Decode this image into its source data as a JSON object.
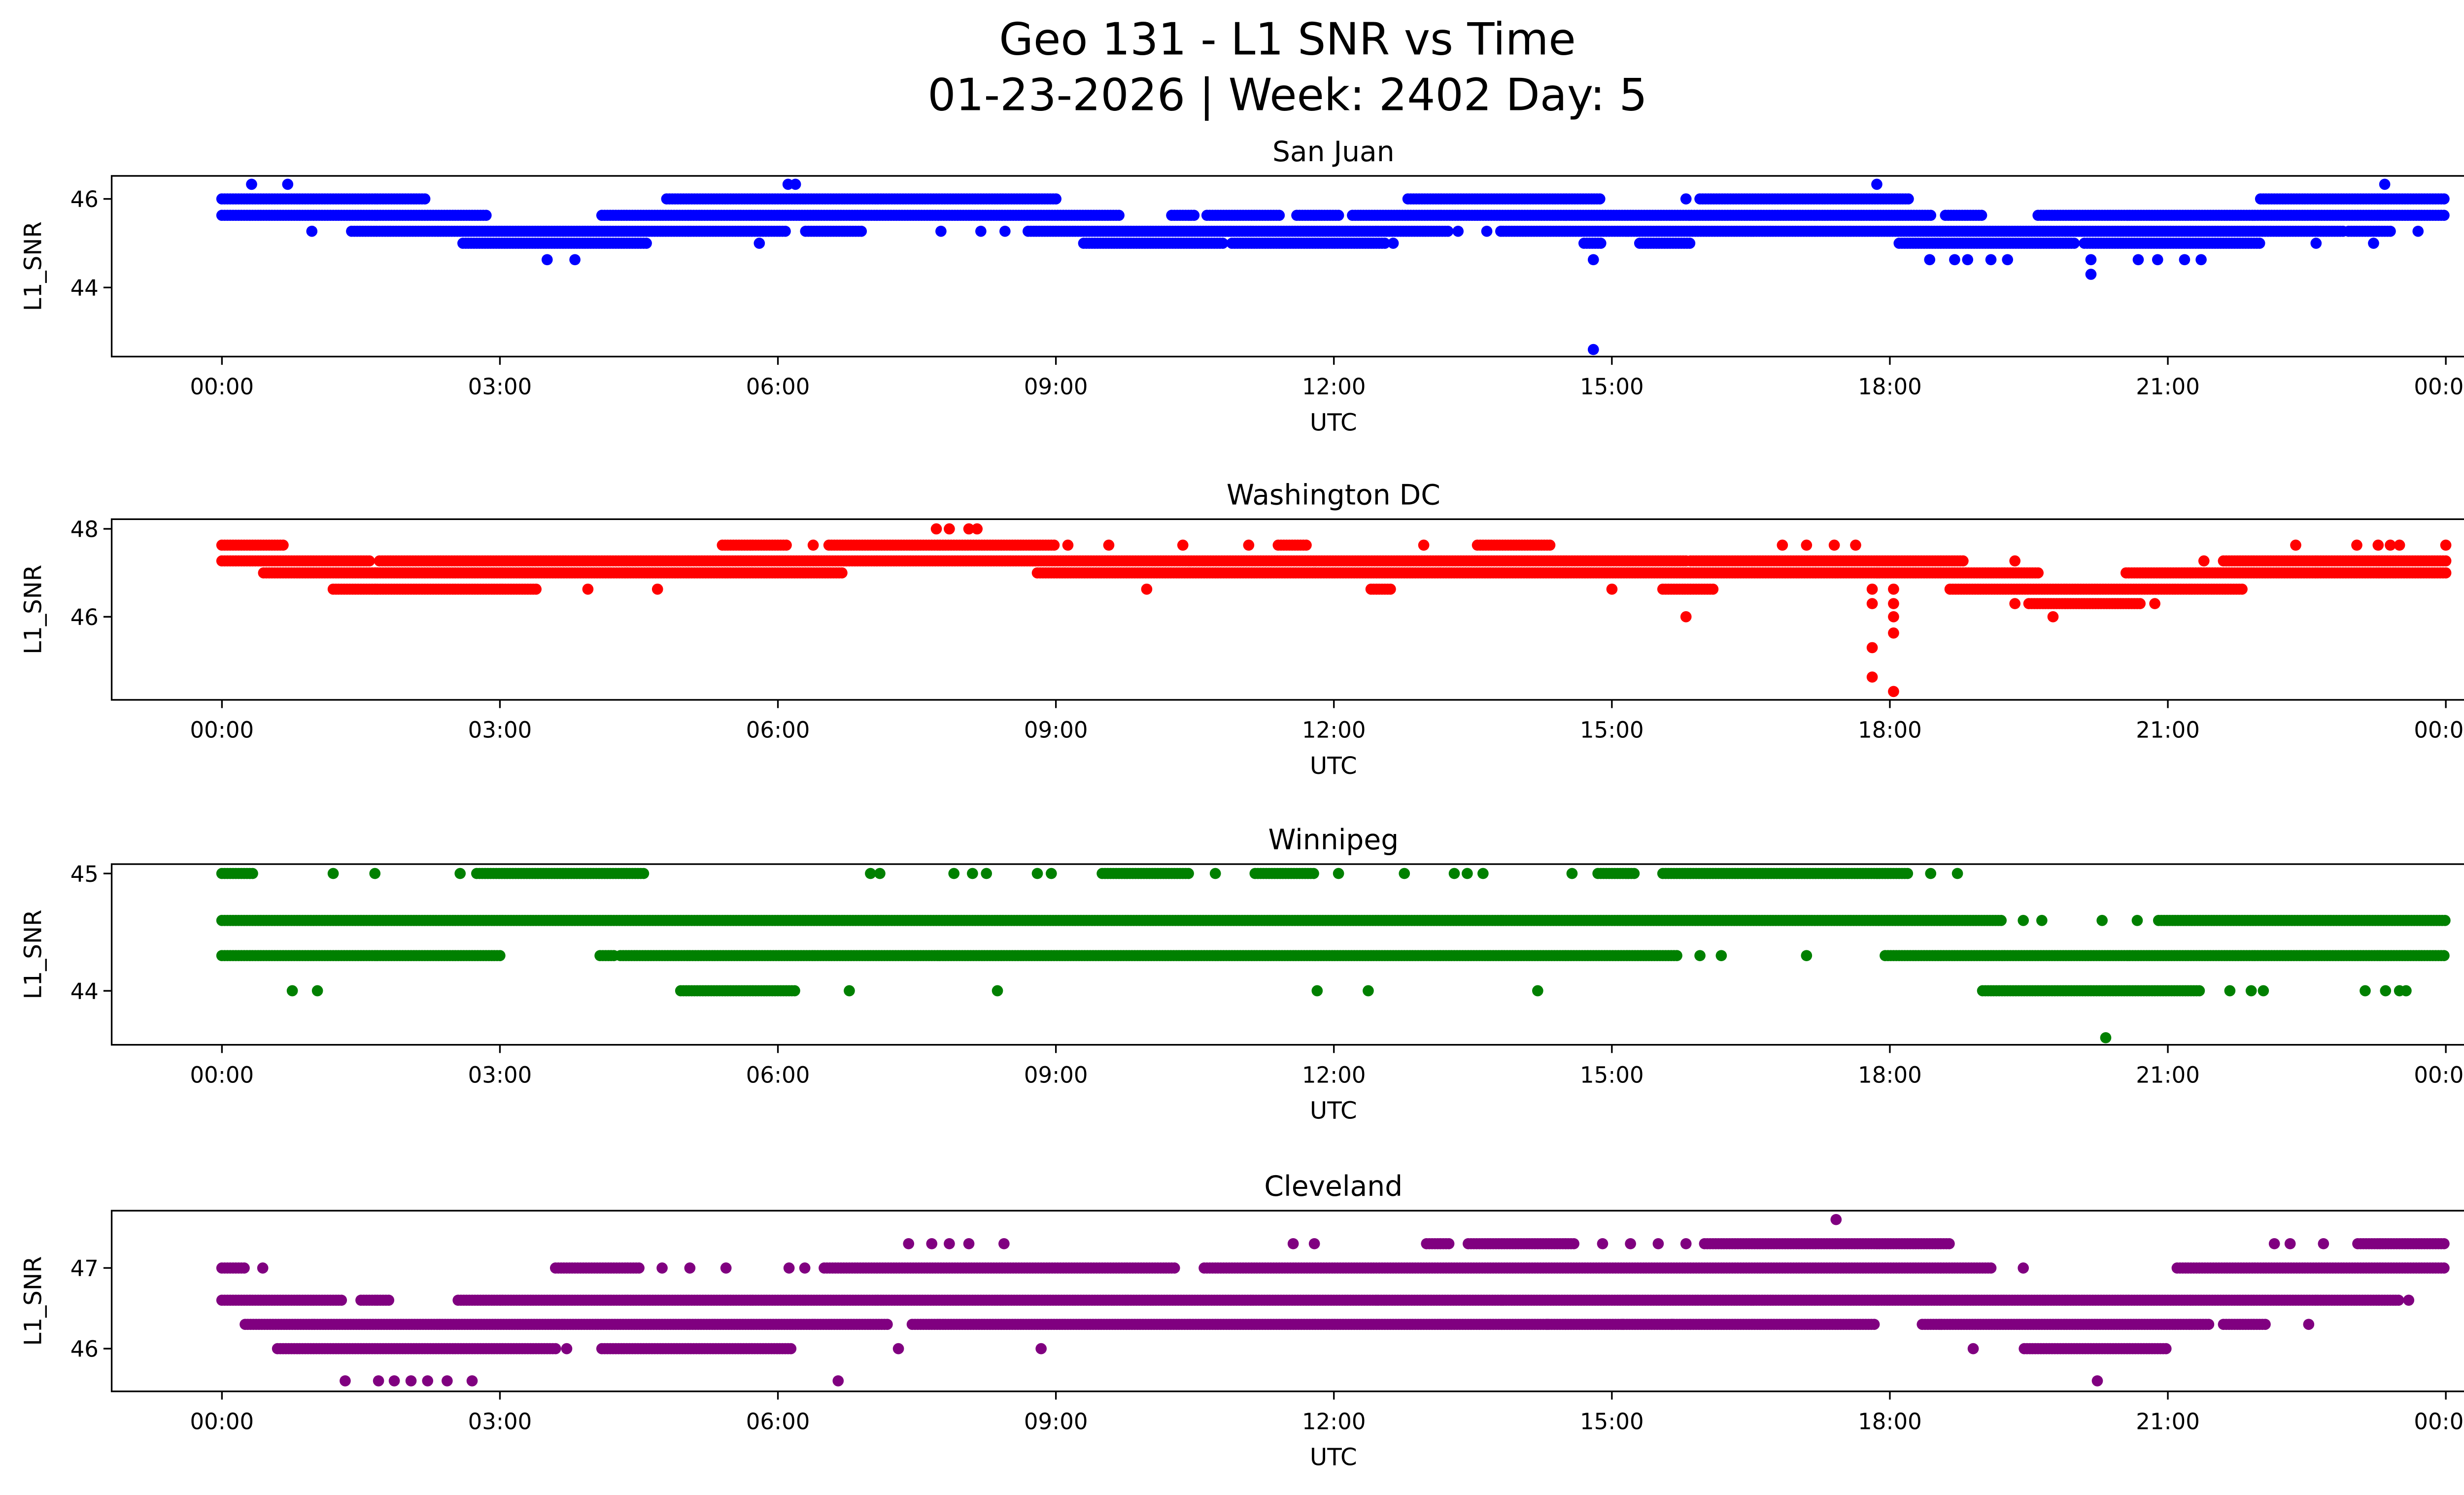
{
  "chart_data": {
    "type": "scatter",
    "title": "Geo 131 - L1 SNR vs Time",
    "subtitle": "01-23-2026 | Week: 2402 Day: 5",
    "xlabel": "UTC",
    "ylabel": "L1_SNR",
    "x_units": "hours since 00:00 UTC",
    "xlim": [
      -1.19,
      25.18
    ],
    "xticks": [
      0,
      3,
      6,
      9,
      12,
      15,
      18,
      21,
      24
    ],
    "xtick_labels": [
      "00:00",
      "03:00",
      "06:00",
      "09:00",
      "12:00",
      "15:00",
      "18:00",
      "21:00",
      "00:00"
    ],
    "panels": [
      {
        "title": "San Juan",
        "color": "#0000ff",
        "ylim": [
          42.44,
          46.52
        ],
        "yticks": [
          44,
          46
        ],
        "levels": [
          {
            "y": 46.33,
            "ranges": [],
            "points": [
              0.32,
              0.71,
              6.11,
              6.19,
              17.86,
              23.34
            ]
          },
          {
            "y": 46.0,
            "ranges": [
              [
                0,
                2.2
              ],
              [
                4.8,
                9.0
              ],
              [
                12.8,
                14.87
              ],
              [
                15.95,
                18.2
              ],
              [
                22.0,
                24.0
              ]
            ],
            "points": [
              15.8
            ]
          },
          {
            "y": 45.63,
            "ranges": [
              [
                0,
                2.87
              ],
              [
                4.1,
                9.7
              ],
              [
                10.25,
                10.5
              ],
              [
                10.63,
                11.43
              ],
              [
                11.6,
                12.05
              ],
              [
                12.2,
                18.45
              ],
              [
                18.6,
                19.0
              ],
              [
                19.6,
                24.0
              ]
            ],
            "points": []
          },
          {
            "y": 45.27,
            "ranges": [
              [
                1.4,
                6.1
              ],
              [
                6.3,
                6.9
              ],
              [
                8.7,
                13.25
              ],
              [
                13.8,
                22.9
              ],
              [
                22.95,
                23.4
              ]
            ],
            "points": [
              0.97,
              7.76,
              8.19,
              8.45,
              13.34,
              13.65,
              23.7
            ]
          },
          {
            "y": 45.0,
            "ranges": [
              [
                2.6,
                4.6
              ],
              [
                9.3,
                10.8
              ],
              [
                10.9,
                12.55
              ],
              [
                14.7,
                14.9
              ],
              [
                15.3,
                15.85
              ],
              [
                18.1,
                20.0
              ],
              [
                20.1,
                22.0
              ]
            ],
            "points": [
              5.8,
              12.64,
              22.6,
              23.22
            ]
          },
          {
            "y": 44.63,
            "ranges": [],
            "points": [
              3.51,
              3.81,
              14.8,
              18.43,
              18.7,
              18.84,
              19.09,
              19.27,
              20.17,
              20.68,
              20.89,
              21.18,
              21.36
            ]
          },
          {
            "y": 44.3,
            "ranges": [],
            "points": [
              20.17
            ]
          },
          {
            "y": 42.6,
            "ranges": [],
            "points": [
              14.8
            ]
          }
        ]
      },
      {
        "title": "Washington DC",
        "color": "#ff0000",
        "ylim": [
          44.11,
          48.22
        ],
        "yticks": [
          46,
          48
        ],
        "levels": [
          {
            "y": 48.0,
            "ranges": [],
            "points": [
              7.71,
              7.85,
              8.06,
              8.15
            ]
          },
          {
            "y": 47.63,
            "ranges": [
              [
                0,
                0.67
              ],
              [
                5.4,
                6.1
              ],
              [
                6.55,
                9.0
              ],
              [
                11.4,
                11.7
              ],
              [
                13.55,
                14.35
              ]
            ],
            "points": [
              6.38,
              9.13,
              9.57,
              10.37,
              11.08,
              12.97,
              16.84,
              17.1,
              17.4,
              17.63,
              22.38,
              23.04,
              23.27,
              23.4,
              23.5,
              24.0
            ]
          },
          {
            "y": 47.27,
            "ranges": [
              [
                0,
                1.6
              ],
              [
                1.7,
                15.8
              ],
              [
                15.85,
                18.8
              ],
              [
                21.6,
                24.0
              ]
            ],
            "points": [
              19.35,
              21.39
            ]
          },
          {
            "y": 47.0,
            "ranges": [
              [
                0.45,
                6.7
              ],
              [
                8.8,
                19.6
              ],
              [
                20.55,
                24.0
              ]
            ],
            "points": []
          },
          {
            "y": 46.63,
            "ranges": [
              [
                1.2,
                3.4
              ],
              [
                12.4,
                12.62
              ],
              [
                15.55,
                16.1
              ],
              [
                18.65,
                21.8
              ]
            ],
            "points": [
              3.95,
              4.7,
              9.98,
              15.0,
              17.81,
              18.04
            ]
          },
          {
            "y": 46.3,
            "ranges": [
              [
                19.5,
                20.7
              ]
            ],
            "points": [
              17.81,
              18.04,
              19.35,
              20.86
            ]
          },
          {
            "y": 46.0,
            "ranges": [],
            "points": [
              15.8,
              18.04,
              19.76
            ]
          },
          {
            "y": 45.63,
            "ranges": [],
            "points": [
              18.04
            ]
          },
          {
            "y": 45.3,
            "ranges": [],
            "points": [
              17.81
            ]
          },
          {
            "y": 44.63,
            "ranges": [],
            "points": [
              17.81
            ]
          },
          {
            "y": 44.3,
            "ranges": [],
            "points": [
              18.04
            ]
          }
        ]
      },
      {
        "title": "Winnipeg",
        "color": "#008000",
        "ylim": [
          43.54,
          45.08
        ],
        "yticks": [
          44,
          45
        ],
        "levels": [
          {
            "y": 45.0,
            "ranges": [
              [
                0,
                0.35
              ],
              [
                2.75,
                4.55
              ],
              [
                9.5,
                10.45
              ],
              [
                11.15,
                11.8
              ],
              [
                14.85,
                15.25
              ],
              [
                15.55,
                18.2
              ]
            ],
            "points": [
              1.2,
              1.65,
              2.57,
              7.0,
              7.1,
              7.9,
              8.1,
              8.25,
              8.8,
              8.95,
              10.72,
              12.05,
              12.76,
              13.3,
              13.44,
              13.61,
              14.57,
              18.44,
              18.73
            ]
          },
          {
            "y": 44.6,
            "ranges": [
              [
                0,
                19.2
              ],
              [
                20.9,
                24.0
              ]
            ],
            "points": [
              19.44,
              19.64,
              20.29,
              20.67
            ]
          },
          {
            "y": 44.3,
            "ranges": [
              [
                0,
                3.0
              ],
              [
                4.08,
                4.25
              ],
              [
                4.3,
                15.7
              ],
              [
                17.95,
                24.0
              ]
            ],
            "points": [
              15.95,
              16.18,
              17.1
            ]
          },
          {
            "y": 44.0,
            "ranges": [
              [
                4.95,
                6.2
              ],
              [
                19.0,
                21.35
              ]
            ],
            "points": [
              0.76,
              1.03,
              6.77,
              8.37,
              11.82,
              12.37,
              14.2,
              21.67,
              21.9,
              22.03,
              23.13,
              23.35,
              23.5,
              23.57
            ]
          },
          {
            "y": 43.6,
            "ranges": [],
            "points": [
              20.33
            ]
          }
        ]
      },
      {
        "title": "Cleveland",
        "color": "#800080",
        "ylim": [
          45.47,
          47.71
        ],
        "yticks": [
          46,
          47
        ],
        "levels": [
          {
            "y": 47.6,
            "ranges": [],
            "points": [
              17.42
            ]
          },
          {
            "y": 47.3,
            "ranges": [
              [
                13.0,
                13.25
              ],
              [
                13.45,
                14.6
              ],
              [
                16.0,
                18.65
              ],
              [
                23.05,
                24.0
              ]
            ],
            "points": [
              7.41,
              7.66,
              7.85,
              8.06,
              8.44,
              11.56,
              11.79,
              14.9,
              15.2,
              15.5,
              15.8,
              22.15,
              22.32,
              22.68
            ]
          },
          {
            "y": 47.0,
            "ranges": [
              [
                0,
                0.25
              ],
              [
                3.6,
                4.5
              ],
              [
                6.5,
                10.3
              ],
              [
                10.6,
                19.1
              ],
              [
                21.1,
                24.0
              ]
            ],
            "points": [
              0.44,
              4.75,
              5.05,
              5.44,
              6.12,
              6.29,
              19.44
            ]
          },
          {
            "y": 46.6,
            "ranges": [
              [
                0,
                1.3
              ],
              [
                1.5,
                1.8
              ],
              [
                2.55,
                23.5
              ]
            ],
            "points": [
              23.6
            ]
          },
          {
            "y": 46.3,
            "ranges": [
              [
                0.25,
                7.2
              ],
              [
                7.45,
                17.85
              ],
              [
                18.35,
                21.45
              ],
              [
                21.6,
                22.05
              ]
            ],
            "points": [
              14.3,
              15.12,
              15.65,
              22.52
            ]
          },
          {
            "y": 46.0,
            "ranges": [
              [
                0.6,
                3.6
              ],
              [
                4.1,
                6.15
              ],
              [
                19.45,
                21.0
              ]
            ],
            "points": [
              3.72,
              7.3,
              8.84,
              18.9
            ]
          },
          {
            "y": 45.6,
            "ranges": [],
            "points": [
              1.33,
              1.69,
              1.86,
              2.04,
              2.22,
              2.43,
              2.7,
              6.65,
              20.24
            ]
          }
        ]
      }
    ]
  }
}
